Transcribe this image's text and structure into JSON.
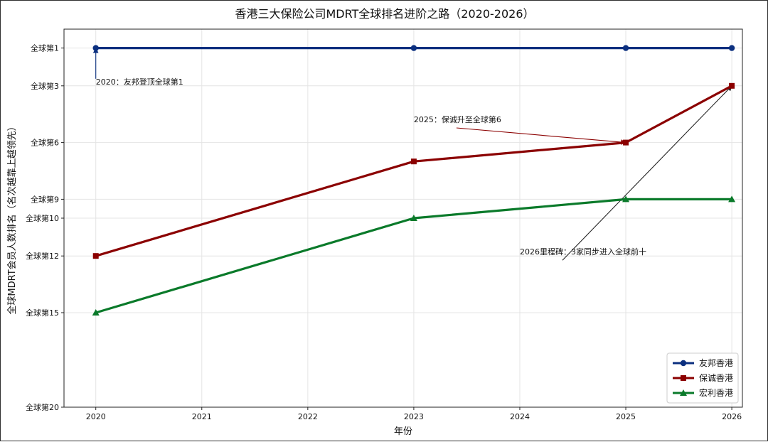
{
  "chart_data": {
    "type": "line",
    "title": "香港三大保险公司MDRT全球排名进阶之路（2020-2026）",
    "xlabel": "年份",
    "ylabel": "全球MDRT会员人数排名（名次越靠上越领先）",
    "x_ticks": [
      2020,
      2021,
      2022,
      2023,
      2024,
      2025,
      2026
    ],
    "xlim": [
      2019.7,
      2026.1
    ],
    "y_inverted": true,
    "ylim": [
      20,
      0
    ],
    "y_ticks": [
      {
        "value": 1,
        "label": "全球第1"
      },
      {
        "value": 3,
        "label": "全球第3"
      },
      {
        "value": 6,
        "label": "全球第6"
      },
      {
        "value": 9,
        "label": "全球第9"
      },
      {
        "value": 10,
        "label": "全球第10"
      },
      {
        "value": 12,
        "label": "全球第12"
      },
      {
        "value": 15,
        "label": "全球第15"
      },
      {
        "value": 20,
        "label": "全球第20"
      }
    ],
    "grid": true,
    "legend_position": "bottom-right",
    "series": [
      {
        "name": "友邦香港",
        "color": "#0b2f7f",
        "marker": "circle",
        "x": [
          2020,
          2023,
          2025,
          2026
        ],
        "y": [
          1,
          1,
          1,
          1
        ]
      },
      {
        "name": "保诚香港",
        "color": "#8b0000",
        "marker": "square",
        "x": [
          2020,
          2023,
          2025,
          2026
        ],
        "y": [
          12,
          7,
          6,
          3
        ]
      },
      {
        "name": "宏利香港",
        "color": "#0a7a2a",
        "marker": "triangle",
        "x": [
          2020,
          2023,
          2025,
          2026
        ],
        "y": [
          15,
          10,
          9,
          9
        ]
      }
    ],
    "annotations": [
      {
        "text": "2020：友邦登顶全球第1",
        "point": [
          2020,
          1
        ],
        "text_at": [
          2020,
          3
        ],
        "color": "#0b2f7f"
      },
      {
        "text": "2025：保诚升至全球第6",
        "point": [
          2025,
          6
        ],
        "text_at": [
          2023,
          5
        ],
        "color": "#8b0000"
      },
      {
        "text": "2026里程碑：3家同步进入全球前十",
        "point": [
          2026,
          3
        ],
        "text_at": [
          2024,
          12
        ],
        "color": "#222222"
      }
    ]
  }
}
